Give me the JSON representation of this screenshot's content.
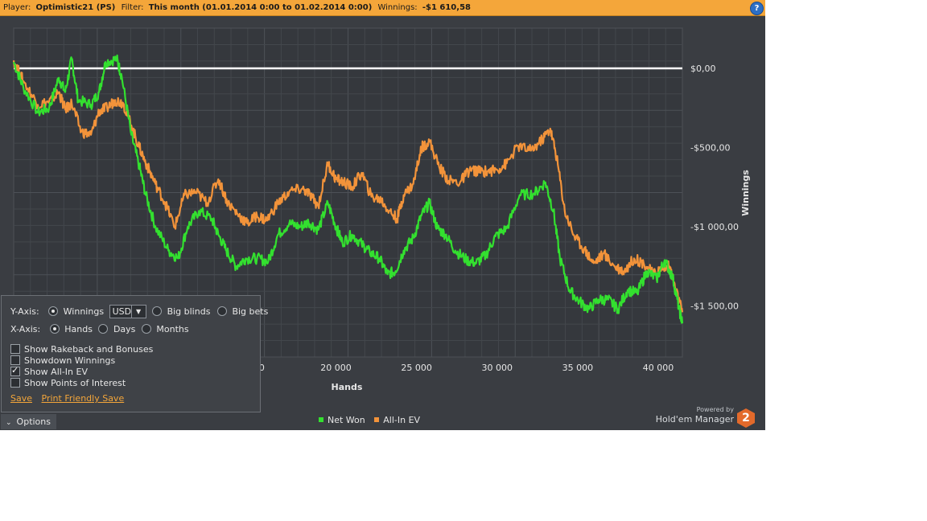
{
  "header": {
    "player_label": "Player:",
    "player_value": "Optimistic21 (PS)",
    "filter_label": "Filter:",
    "filter_value": "This month (01.01.2014 0:00 to 01.02.2014 0:00)",
    "winnings_label": "Winnings:",
    "winnings_value": "-$1 610,58",
    "help_icon": "question-icon"
  },
  "chart_data": {
    "type": "line",
    "title": "",
    "xlabel": "Hands",
    "ylabel": "Winnings",
    "xlim": [
      0,
      41500
    ],
    "ylim": [
      -1800,
      250
    ],
    "x_ticks": [
      20000,
      25000,
      30000,
      35000,
      40000
    ],
    "x_tick_labels": [
      "20 000",
      "25 000",
      "30 000",
      "35 000",
      "40 000"
    ],
    "partial_x_tick_label": "0",
    "y_ticks": [
      0,
      -500,
      -1000,
      -1500
    ],
    "y_tick_labels": [
      "$0,00",
      "-$500,00",
      "-$1 000,00",
      "-$1 500,00"
    ],
    "grid": true,
    "zero_line": true,
    "legend_position": "bottom-center",
    "series": [
      {
        "name": "Net Won",
        "color": "#33e02f",
        "points": [
          [
            0,
            40
          ],
          [
            600,
            -120
          ],
          [
            1500,
            -280
          ],
          [
            2200,
            -250
          ],
          [
            2800,
            -60
          ],
          [
            3200,
            -150
          ],
          [
            3600,
            60
          ],
          [
            4000,
            -200
          ],
          [
            4800,
            -230
          ],
          [
            5300,
            -150
          ],
          [
            5700,
            40
          ],
          [
            6400,
            60
          ],
          [
            6700,
            -50
          ],
          [
            7300,
            -420
          ],
          [
            7800,
            -620
          ],
          [
            8200,
            -800
          ],
          [
            8800,
            -1000
          ],
          [
            9600,
            -1150
          ],
          [
            10200,
            -1200
          ],
          [
            10800,
            -1000
          ],
          [
            11500,
            -900
          ],
          [
            12300,
            -950
          ],
          [
            12700,
            -1050
          ],
          [
            13200,
            -1150
          ],
          [
            13800,
            -1250
          ],
          [
            14400,
            -1200
          ],
          [
            15100,
            -1200
          ],
          [
            15800,
            -1220
          ],
          [
            16400,
            -1050
          ],
          [
            17100,
            -980
          ],
          [
            17800,
            -1000
          ],
          [
            18300,
            -970
          ],
          [
            18900,
            -1020
          ],
          [
            19500,
            -850
          ],
          [
            20000,
            -1000
          ],
          [
            20400,
            -1100
          ],
          [
            21000,
            -1050
          ],
          [
            21600,
            -1110
          ],
          [
            22100,
            -1160
          ],
          [
            22700,
            -1200
          ],
          [
            23200,
            -1300
          ],
          [
            23700,
            -1280
          ],
          [
            24200,
            -1150
          ],
          [
            24800,
            -1070
          ],
          [
            25300,
            -930
          ],
          [
            25800,
            -850
          ],
          [
            26300,
            -1010
          ],
          [
            26800,
            -1050
          ],
          [
            27400,
            -1150
          ],
          [
            28100,
            -1210
          ],
          [
            28700,
            -1230
          ],
          [
            29300,
            -1180
          ],
          [
            29900,
            -1060
          ],
          [
            30600,
            -1010
          ],
          [
            31400,
            -800
          ],
          [
            32300,
            -790
          ],
          [
            33000,
            -720
          ],
          [
            33500,
            -900
          ],
          [
            33900,
            -1200
          ],
          [
            34500,
            -1400
          ],
          [
            35100,
            -1470
          ],
          [
            35700,
            -1520
          ],
          [
            36300,
            -1460
          ],
          [
            36900,
            -1460
          ],
          [
            37500,
            -1520
          ],
          [
            38100,
            -1400
          ],
          [
            38700,
            -1420
          ],
          [
            39300,
            -1280
          ],
          [
            39900,
            -1330
          ],
          [
            40400,
            -1210
          ],
          [
            40900,
            -1320
          ],
          [
            41300,
            -1520
          ],
          [
            41500,
            -1610
          ]
        ]
      },
      {
        "name": "All-In EV",
        "color": "#f2933a",
        "points": [
          [
            0,
            50
          ],
          [
            600,
            -80
          ],
          [
            1500,
            -230
          ],
          [
            2200,
            -210
          ],
          [
            2800,
            -150
          ],
          [
            3200,
            -260
          ],
          [
            3600,
            -220
          ],
          [
            4200,
            -400
          ],
          [
            4800,
            -420
          ],
          [
            5300,
            -270
          ],
          [
            5800,
            -250
          ],
          [
            6300,
            -200
          ],
          [
            6800,
            -220
          ],
          [
            7300,
            -360
          ],
          [
            7800,
            -500
          ],
          [
            8300,
            -620
          ],
          [
            8800,
            -730
          ],
          [
            9400,
            -850
          ],
          [
            10000,
            -1000
          ],
          [
            10600,
            -800
          ],
          [
            11300,
            -780
          ],
          [
            12000,
            -850
          ],
          [
            12700,
            -700
          ],
          [
            13300,
            -850
          ],
          [
            13900,
            -920
          ],
          [
            14500,
            -980
          ],
          [
            15100,
            -930
          ],
          [
            15700,
            -960
          ],
          [
            16400,
            -850
          ],
          [
            17100,
            -780
          ],
          [
            17900,
            -760
          ],
          [
            18400,
            -800
          ],
          [
            18900,
            -870
          ],
          [
            19500,
            -600
          ],
          [
            20000,
            -700
          ],
          [
            20500,
            -720
          ],
          [
            21000,
            -750
          ],
          [
            21600,
            -660
          ],
          [
            22200,
            -810
          ],
          [
            22800,
            -830
          ],
          [
            23300,
            -900
          ],
          [
            23800,
            -950
          ],
          [
            24200,
            -800
          ],
          [
            24800,
            -730
          ],
          [
            25300,
            -500
          ],
          [
            25800,
            -460
          ],
          [
            26400,
            -620
          ],
          [
            27000,
            -710
          ],
          [
            27700,
            -720
          ],
          [
            28300,
            -640
          ],
          [
            28800,
            -650
          ],
          [
            29400,
            -650
          ],
          [
            30000,
            -640
          ],
          [
            30600,
            -600
          ],
          [
            31300,
            -490
          ],
          [
            32100,
            -520
          ],
          [
            32800,
            -450
          ],
          [
            33300,
            -380
          ],
          [
            33700,
            -560
          ],
          [
            34200,
            -900
          ],
          [
            34800,
            -1060
          ],
          [
            35400,
            -1140
          ],
          [
            36000,
            -1230
          ],
          [
            36600,
            -1170
          ],
          [
            37300,
            -1250
          ],
          [
            37900,
            -1280
          ],
          [
            38500,
            -1200
          ],
          [
            39100,
            -1230
          ],
          [
            39700,
            -1300
          ],
          [
            40200,
            -1260
          ],
          [
            40700,
            -1250
          ],
          [
            41100,
            -1400
          ],
          [
            41500,
            -1540
          ]
        ]
      }
    ]
  },
  "options": {
    "y_axis_label": "Y-Axis:",
    "y_winnings": "Winnings",
    "currency": "USD",
    "y_big_blinds": "Big blinds",
    "y_big_bets": "Big bets",
    "x_axis_label": "X-Axis:",
    "x_hands": "Hands",
    "x_days": "Days",
    "x_months": "Months",
    "show_rakeback": "Show Rakeback and Bonuses",
    "showdown_winnings": "Showdown Winnings",
    "show_allin_ev": "Show All-In EV",
    "show_poi": "Show Points of Interest",
    "save": "Save",
    "print_save": "Print Friendly Save",
    "toggle_label": "Options"
  },
  "legend": {
    "net_won": "Net Won",
    "allin_ev": "All-In EV"
  },
  "brand": {
    "powered_by": "Powered by",
    "name": "Hold'em Manager",
    "logo_digit": "2"
  }
}
